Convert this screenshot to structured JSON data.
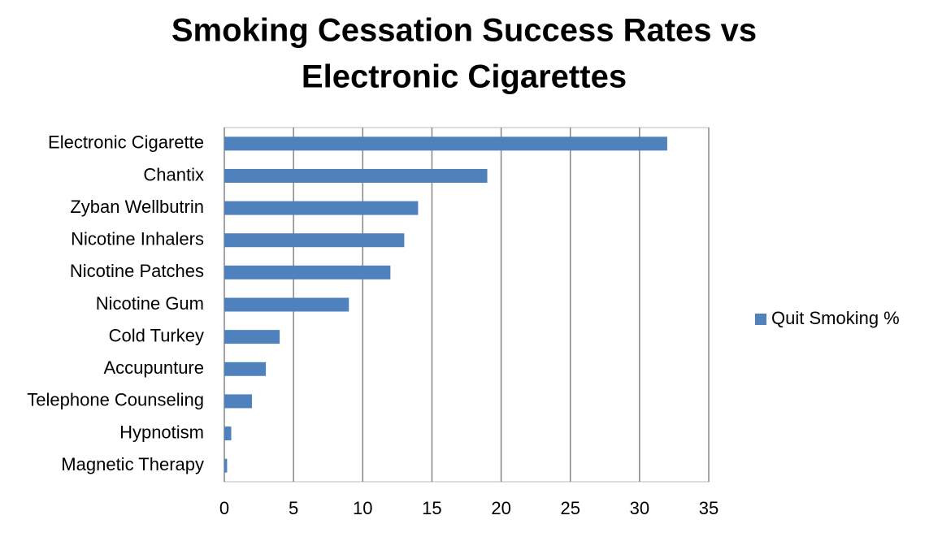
{
  "chart_data": {
    "type": "bar",
    "orientation": "horizontal",
    "title": [
      "Smoking Cessation Success Rates vs",
      "Electronic Cigarettes"
    ],
    "categories": [
      "Electronic Cigarette",
      "Chantix",
      "Zyban Wellbutrin",
      "Nicotine Inhalers",
      "Nicotine Patches",
      "Nicotine Gum",
      "Cold Turkey",
      "Accupunture",
      "Telephone Counseling",
      "Hypnotism",
      "Magnetic Therapy"
    ],
    "series": [
      {
        "name": "Quit Smoking %",
        "color": "#4f81bd",
        "values": [
          32,
          19,
          14,
          13,
          12,
          9,
          4,
          3,
          2,
          0.5,
          0.2
        ]
      }
    ],
    "xlim": [
      0,
      35
    ],
    "xticks": [
      0,
      5,
      10,
      15,
      20,
      25,
      30,
      35
    ],
    "grid": true,
    "legend": "right"
  }
}
